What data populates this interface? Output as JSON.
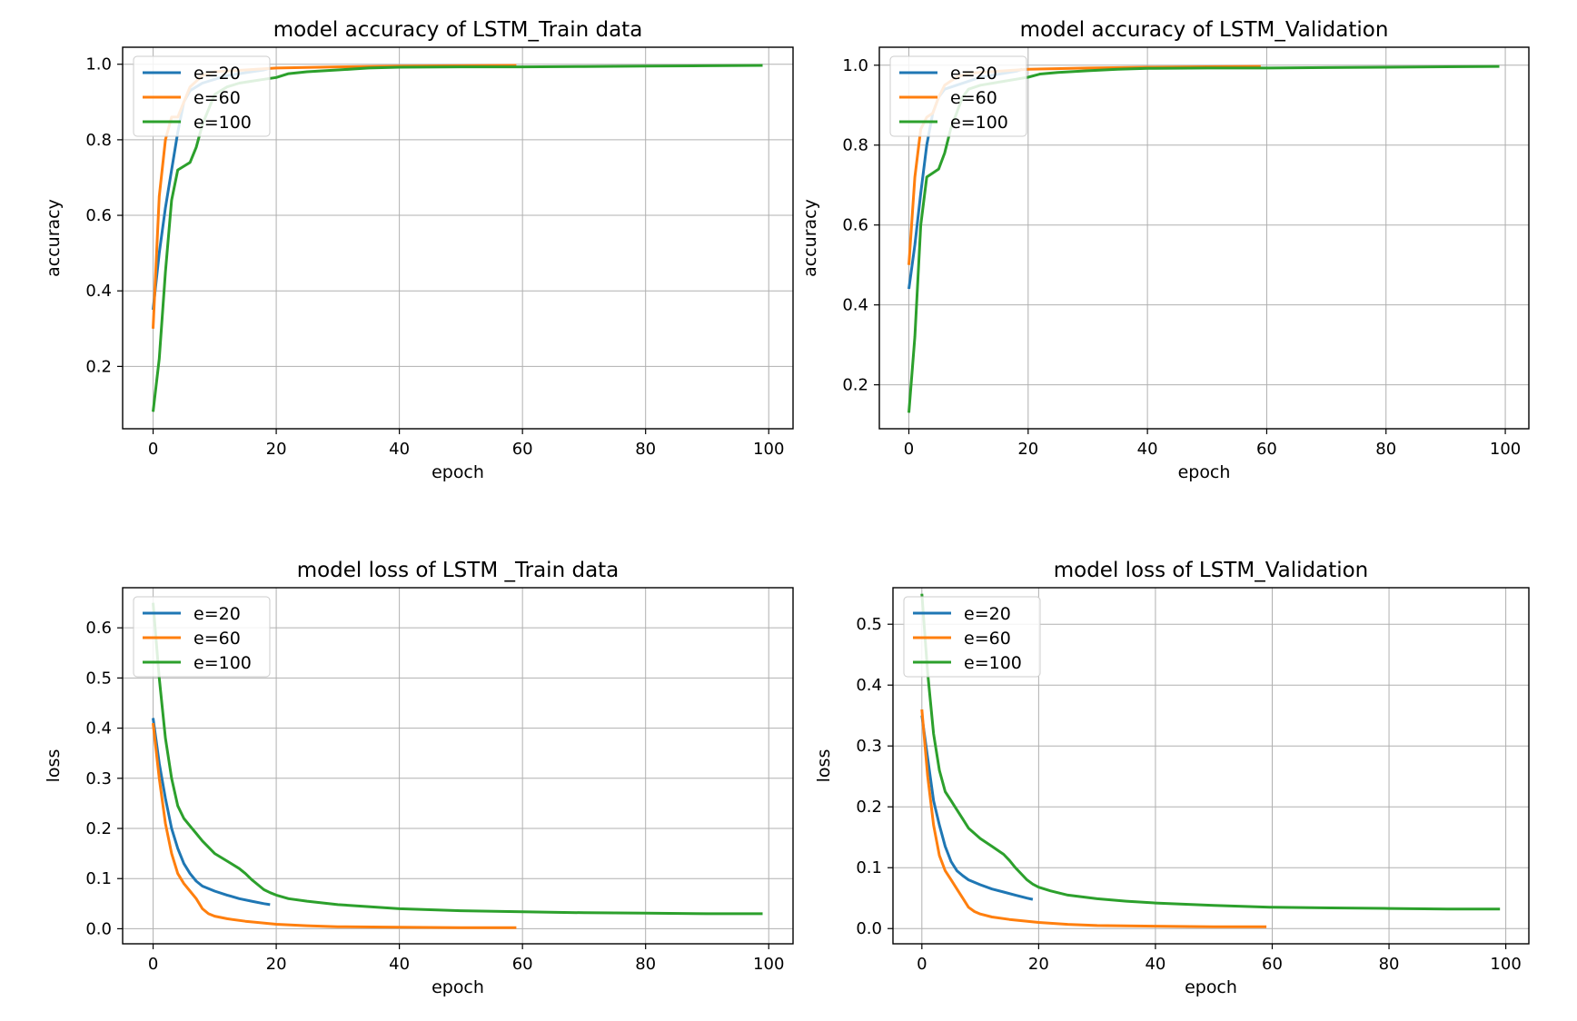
{
  "chart_data": [
    {
      "type": "line",
      "title": "model accuracy of LSTM_Train data",
      "xlabel": "epoch",
      "ylabel": "accuracy",
      "xlim": [
        -4.95,
        103.95
      ],
      "ylim": [
        0.035,
        1.045
      ],
      "xticks": [
        0,
        20,
        40,
        60,
        80,
        100
      ],
      "yticks": [
        0.2,
        0.4,
        0.6,
        0.8,
        1.0
      ],
      "ytick_labels": [
        "0.2",
        "0.4",
        "0.6",
        "0.8",
        "1.0"
      ],
      "grid": true,
      "legend_position": "upper-left",
      "series": [
        {
          "name": "e=20",
          "color": "#1f77b4",
          "x": [
            0,
            1,
            2,
            3,
            4,
            5,
            6,
            8,
            10,
            12,
            14,
            16,
            18,
            19
          ],
          "y": [
            0.35,
            0.5,
            0.62,
            0.72,
            0.82,
            0.9,
            0.93,
            0.95,
            0.96,
            0.97,
            0.975,
            0.98,
            0.985,
            0.99
          ]
        },
        {
          "name": "e=60",
          "color": "#ff7f0e",
          "x": [
            0,
            1,
            2,
            3,
            4,
            5,
            6,
            8,
            10,
            15,
            20,
            30,
            40,
            50,
            59
          ],
          "y": [
            0.3,
            0.65,
            0.8,
            0.86,
            0.86,
            0.9,
            0.94,
            0.97,
            0.98,
            0.985,
            0.99,
            0.993,
            0.995,
            0.996,
            0.997
          ]
        },
        {
          "name": "e=100",
          "color": "#2ca02c",
          "x": [
            0,
            1,
            2,
            3,
            4,
            5,
            6,
            7,
            8,
            9,
            10,
            12,
            14,
            16,
            18,
            20,
            22,
            25,
            30,
            35,
            40,
            50,
            60,
            70,
            80,
            90,
            99
          ],
          "y": [
            0.08,
            0.22,
            0.45,
            0.64,
            0.72,
            0.73,
            0.74,
            0.78,
            0.84,
            0.88,
            0.92,
            0.94,
            0.95,
            0.955,
            0.96,
            0.965,
            0.975,
            0.98,
            0.985,
            0.99,
            0.992,
            0.993,
            0.993,
            0.994,
            0.995,
            0.996,
            0.997
          ]
        }
      ]
    },
    {
      "type": "line",
      "title": "model accuracy of LSTM_Validation",
      "xlabel": "epoch",
      "ylabel": "accuracy",
      "xlim": [
        -4.95,
        103.95
      ],
      "ylim": [
        0.09,
        1.045
      ],
      "xticks": [
        0,
        20,
        40,
        60,
        80,
        100
      ],
      "yticks": [
        0.2,
        0.4,
        0.6,
        0.8,
        1.0
      ],
      "ytick_labels": [
        "0.2",
        "0.4",
        "0.6",
        "0.8",
        "1.0"
      ],
      "grid": true,
      "legend_position": "upper-left",
      "series": [
        {
          "name": "e=20",
          "color": "#1f77b4",
          "x": [
            0,
            1,
            2,
            3,
            4,
            5,
            6,
            8,
            10,
            12,
            14,
            16,
            18,
            19
          ],
          "y": [
            0.44,
            0.55,
            0.68,
            0.8,
            0.88,
            0.92,
            0.94,
            0.95,
            0.96,
            0.97,
            0.975,
            0.98,
            0.985,
            0.99
          ]
        },
        {
          "name": "e=60",
          "color": "#ff7f0e",
          "x": [
            0,
            1,
            2,
            3,
            4,
            5,
            6,
            8,
            10,
            15,
            20,
            30,
            40,
            50,
            59
          ],
          "y": [
            0.5,
            0.72,
            0.84,
            0.87,
            0.88,
            0.92,
            0.95,
            0.97,
            0.98,
            0.985,
            0.99,
            0.993,
            0.995,
            0.996,
            0.997
          ]
        },
        {
          "name": "e=100",
          "color": "#2ca02c",
          "x": [
            0,
            1,
            2,
            3,
            4,
            5,
            6,
            7,
            8,
            9,
            10,
            12,
            14,
            16,
            18,
            20,
            22,
            25,
            30,
            35,
            40,
            50,
            60,
            70,
            80,
            90,
            99
          ],
          "y": [
            0.13,
            0.32,
            0.6,
            0.72,
            0.73,
            0.74,
            0.78,
            0.84,
            0.88,
            0.92,
            0.94,
            0.95,
            0.955,
            0.96,
            0.965,
            0.97,
            0.978,
            0.982,
            0.986,
            0.99,
            0.992,
            0.993,
            0.993,
            0.994,
            0.995,
            0.996,
            0.997
          ]
        }
      ]
    },
    {
      "type": "line",
      "title": "model loss of LSTM _Train data",
      "xlabel": "epoch",
      "ylabel": "loss",
      "xlim": [
        -4.95,
        103.95
      ],
      "ylim": [
        -0.03,
        0.68
      ],
      "xticks": [
        0,
        20,
        40,
        60,
        80,
        100
      ],
      "yticks": [
        0.0,
        0.1,
        0.2,
        0.3,
        0.4,
        0.5,
        0.6
      ],
      "ytick_labels": [
        "0.0",
        "0.1",
        "0.2",
        "0.3",
        "0.4",
        "0.5",
        "0.6"
      ],
      "grid": true,
      "legend_position": "upper-left",
      "series": [
        {
          "name": "e=20",
          "color": "#1f77b4",
          "x": [
            0,
            1,
            2,
            3,
            4,
            5,
            6,
            7,
            8,
            10,
            12,
            14,
            16,
            18,
            19
          ],
          "y": [
            0.42,
            0.33,
            0.26,
            0.2,
            0.16,
            0.13,
            0.11,
            0.095,
            0.085,
            0.075,
            0.067,
            0.06,
            0.055,
            0.05,
            0.048
          ]
        },
        {
          "name": "e=60",
          "color": "#ff7f0e",
          "x": [
            0,
            1,
            2,
            3,
            4,
            5,
            6,
            7,
            8,
            9,
            10,
            12,
            15,
            20,
            25,
            30,
            40,
            50,
            59
          ],
          "y": [
            0.41,
            0.3,
            0.21,
            0.15,
            0.11,
            0.09,
            0.075,
            0.06,
            0.04,
            0.03,
            0.025,
            0.02,
            0.015,
            0.009,
            0.006,
            0.004,
            0.003,
            0.002,
            0.002
          ]
        },
        {
          "name": "e=100",
          "color": "#2ca02c",
          "x": [
            0,
            1,
            2,
            3,
            4,
            5,
            6,
            7,
            8,
            10,
            12,
            14,
            15,
            16,
            17,
            18,
            19,
            20,
            22,
            25,
            30,
            35,
            40,
            50,
            60,
            70,
            80,
            90,
            99
          ],
          "y": [
            0.65,
            0.5,
            0.38,
            0.3,
            0.245,
            0.22,
            0.205,
            0.19,
            0.175,
            0.15,
            0.135,
            0.12,
            0.11,
            0.098,
            0.088,
            0.078,
            0.072,
            0.067,
            0.06,
            0.055,
            0.048,
            0.044,
            0.04,
            0.036,
            0.034,
            0.032,
            0.031,
            0.03,
            0.03
          ]
        }
      ]
    },
    {
      "type": "line",
      "title": "model loss of LSTM_Validation",
      "xlabel": "epoch",
      "ylabel": "loss",
      "xlim": [
        -4.95,
        103.95
      ],
      "ylim": [
        -0.025,
        0.56
      ],
      "xticks": [
        0,
        20,
        40,
        60,
        80,
        100
      ],
      "yticks": [
        0.0,
        0.1,
        0.2,
        0.3,
        0.4,
        0.5
      ],
      "ytick_labels": [
        "0.0",
        "0.1",
        "0.2",
        "0.3",
        "0.4",
        "0.5"
      ],
      "grid": true,
      "legend_position": "upper-left",
      "series": [
        {
          "name": "e=20",
          "color": "#1f77b4",
          "x": [
            0,
            1,
            2,
            3,
            4,
            5,
            6,
            7,
            8,
            10,
            12,
            14,
            16,
            18,
            19
          ],
          "y": [
            0.35,
            0.28,
            0.21,
            0.17,
            0.135,
            0.11,
            0.095,
            0.087,
            0.08,
            0.072,
            0.065,
            0.06,
            0.055,
            0.05,
            0.048
          ]
        },
        {
          "name": "e=60",
          "color": "#ff7f0e",
          "x": [
            0,
            1,
            2,
            3,
            4,
            5,
            6,
            7,
            8,
            9,
            10,
            12,
            15,
            20,
            25,
            30,
            40,
            50,
            59
          ],
          "y": [
            0.36,
            0.25,
            0.17,
            0.12,
            0.095,
            0.08,
            0.065,
            0.05,
            0.035,
            0.028,
            0.024,
            0.019,
            0.015,
            0.01,
            0.007,
            0.005,
            0.004,
            0.003,
            0.003
          ]
        },
        {
          "name": "e=100",
          "color": "#2ca02c",
          "x": [
            0,
            1,
            2,
            3,
            4,
            5,
            6,
            7,
            8,
            10,
            12,
            14,
            15,
            16,
            17,
            18,
            19,
            20,
            22,
            25,
            30,
            35,
            40,
            50,
            60,
            70,
            80,
            90,
            99
          ],
          "y": [
            0.55,
            0.42,
            0.32,
            0.26,
            0.225,
            0.21,
            0.195,
            0.18,
            0.165,
            0.148,
            0.135,
            0.122,
            0.112,
            0.1,
            0.09,
            0.08,
            0.073,
            0.068,
            0.062,
            0.055,
            0.049,
            0.045,
            0.042,
            0.038,
            0.035,
            0.034,
            0.033,
            0.032,
            0.032
          ]
        }
      ]
    }
  ]
}
